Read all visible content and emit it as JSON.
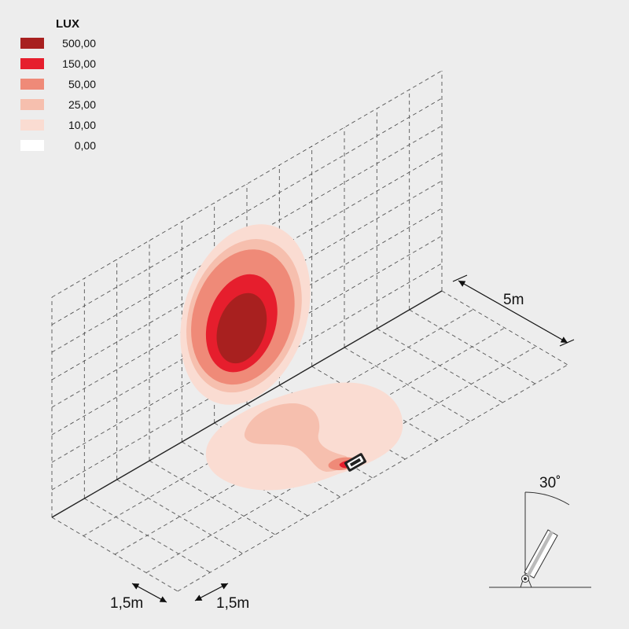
{
  "legend": {
    "title": "LUX",
    "entries": [
      {
        "value": "500,00",
        "color": "#a8201f"
      },
      {
        "value": "150,00",
        "color": "#e61e2d"
      },
      {
        "value": "50,00",
        "color": "#ef8a78"
      },
      {
        "value": "25,00",
        "color": "#f6bfae"
      },
      {
        "value": "10,00",
        "color": "#fadcd2"
      },
      {
        "value": "0,00",
        "color": "#ffffff"
      }
    ]
  },
  "dimensions": {
    "depth": "5m",
    "grid_x": "1,5m",
    "grid_y": "1,5m",
    "tilt_angle": "30˚"
  }
}
